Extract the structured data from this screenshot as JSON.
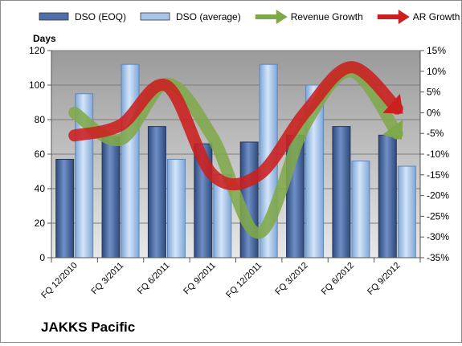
{
  "chart_data": {
    "type": "bar",
    "title": "",
    "company": "JAKKS Pacific",
    "categories": [
      "FQ 12/2010",
      "FQ 3/2011",
      "FQ 6/2011",
      "FQ 9/2011",
      "FQ 12/2011",
      "FQ 3/2012",
      "FQ 6/2012",
      "FQ 9/2012"
    ],
    "series": [
      {
        "name": "DSO (EOQ)",
        "kind": "bar",
        "axis": "left",
        "color": "#4f6fa8",
        "values": [
          57,
          70,
          76,
          66,
          67,
          71,
          76,
          71
        ]
      },
      {
        "name": "DSO (average)",
        "kind": "bar",
        "axis": "left",
        "color": "#a9c6e9",
        "values": [
          95,
          112,
          57,
          48,
          112,
          100,
          56,
          53
        ]
      },
      {
        "name": "Revenue Growth",
        "kind": "arrow-line",
        "axis": "right",
        "color": "#7fa84a",
        "values": [
          0,
          -6.5,
          7,
          -6,
          -29,
          -3,
          10,
          -5
        ]
      },
      {
        "name": "AR Growth",
        "kind": "arrow-line",
        "axis": "right",
        "color": "#cc1f1f",
        "values": [
          -5.5,
          -3,
          6.5,
          -15,
          -15,
          0,
          11,
          1
        ]
      }
    ],
    "y_left": {
      "label": "Days",
      "min": 0,
      "max": 120,
      "step": 20
    },
    "y_right": {
      "min": -35,
      "max": 15,
      "step": 5,
      "unit": "%"
    },
    "grid": true,
    "legend": "top",
    "plot_background": "#c6c6c6"
  }
}
